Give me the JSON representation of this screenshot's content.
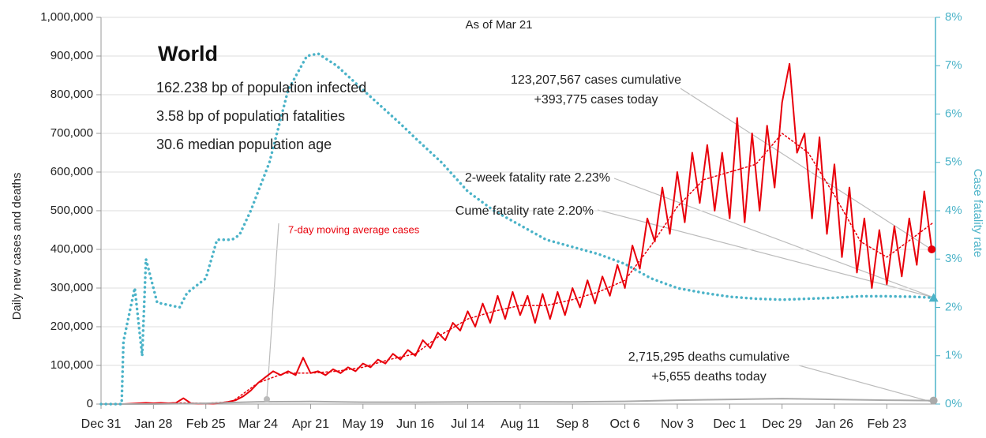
{
  "chart_data": {
    "type": "line",
    "ylabel": "Daily new cases and deaths",
    "y2label": "Case fatality rate",
    "ylim": [
      0,
      1000000
    ],
    "yticks": [
      0,
      {
        "value": 100000,
        "label": "100,000"
      },
      {
        "value": 200000,
        "label": "200,000"
      },
      {
        "value": 300000,
        "label": "300,000"
      },
      {
        "value": 400000,
        "label": "400,000"
      },
      {
        "value": 500000,
        "label": "500,000"
      },
      {
        "value": 600000,
        "label": "600,000"
      },
      {
        "value": 700000,
        "label": "700,000"
      },
      {
        "value": 800000,
        "label": "800,000"
      },
      {
        "value": 900000,
        "label": "900,000"
      },
      {
        "value": 1000000,
        "label": "1,000,000"
      }
    ],
    "y2lim": [
      0,
      8
    ],
    "y2ticks": [
      {
        "value": 0,
        "label": "0%"
      },
      {
        "value": 1,
        "label": "1%"
      },
      {
        "value": 2,
        "label": "2%"
      },
      {
        "value": 3,
        "label": "3%"
      },
      {
        "value": 4,
        "label": "4%"
      },
      {
        "value": 5,
        "label": "5%"
      },
      {
        "value": 6,
        "label": "6%"
      },
      {
        "value": 7,
        "label": "7%"
      },
      {
        "value": 8,
        "label": "8%"
      }
    ],
    "xlim": [
      0,
      446
    ],
    "xticks": [
      {
        "value": 0,
        "label": "Dec 31"
      },
      {
        "value": 28,
        "label": "Jan 28"
      },
      {
        "value": 56,
        "label": "Feb 25"
      },
      {
        "value": 84,
        "label": "Mar 24"
      },
      {
        "value": 112,
        "label": "Apr 21"
      },
      {
        "value": 140,
        "label": "May 19"
      },
      {
        "value": 168,
        "label": "Jun 16"
      },
      {
        "value": 196,
        "label": "Jul 14"
      },
      {
        "value": 224,
        "label": "Aug 11"
      },
      {
        "value": 252,
        "label": "Sep 8"
      },
      {
        "value": 280,
        "label": "Oct 6"
      },
      {
        "value": 308,
        "label": "Nov 3"
      },
      {
        "value": 336,
        "label": "Dec 1"
      },
      {
        "value": 364,
        "label": "Dec 29"
      },
      {
        "value": 392,
        "label": "Jan 26"
      },
      {
        "value": 420,
        "label": "Feb 23"
      }
    ],
    "grid": true,
    "annotations": [
      "As of Mar 21",
      "World",
      "162.238 bp of population infected",
      "3.58 bp of population fatalities",
      "30.6 median population age",
      "123,207,567 cases cumulative",
      "+393,775 cases today",
      "2-week fatality rate 2.23%",
      "Cume fatality rate 2.20%",
      "7-day moving average cases",
      "2,715,295 deaths cumulative",
      "+5,655 deaths today"
    ],
    "series": [
      {
        "color": "#e8000b",
        "style": "solid",
        "x": [
          0,
          4,
          8,
          12,
          16,
          20,
          24,
          28,
          32,
          36,
          40,
          44,
          48,
          52,
          56,
          60,
          64,
          68,
          72,
          76,
          80,
          84,
          88,
          92,
          96,
          100,
          104,
          108,
          112,
          116,
          120,
          124,
          128,
          132,
          136,
          140,
          144,
          148,
          152,
          156,
          160,
          164,
          168,
          172,
          176,
          180,
          184,
          188,
          192,
          196,
          200,
          204,
          208,
          212,
          216,
          220,
          224,
          228,
          232,
          236,
          240,
          244,
          248,
          252,
          256,
          260,
          264,
          268,
          272,
          276,
          280,
          284,
          288,
          292,
          296,
          300,
          304,
          308,
          312,
          316,
          320,
          324,
          328,
          332,
          336,
          340,
          344,
          348,
          352,
          356,
          360,
          364,
          368,
          372,
          376,
          380,
          384,
          388,
          392,
          396,
          400,
          404,
          408,
          412,
          416,
          420,
          424,
          428,
          432,
          436,
          440,
          444
        ],
        "values": [
          0,
          0,
          0,
          0,
          1000,
          2000,
          3000,
          2000,
          3000,
          2000,
          3000,
          15000,
          2000,
          1000,
          2000,
          1000,
          3000,
          6000,
          10000,
          20000,
          35000,
          55000,
          70000,
          85000,
          75000,
          85000,
          75000,
          120000,
          80000,
          85000,
          75000,
          90000,
          80000,
          95000,
          85000,
          105000,
          95000,
          115000,
          105000,
          130000,
          115000,
          140000,
          125000,
          165000,
          145000,
          185000,
          165000,
          210000,
          190000,
          240000,
          200000,
          260000,
          210000,
          280000,
          220000,
          290000,
          230000,
          280000,
          210000,
          285000,
          220000,
          290000,
          230000,
          300000,
          250000,
          320000,
          260000,
          330000,
          280000,
          360000,
          300000,
          410000,
          350000,
          480000,
          420000,
          560000,
          440000,
          600000,
          470000,
          650000,
          520000,
          670000,
          500000,
          650000,
          480000,
          740000,
          470000,
          700000,
          500000,
          720000,
          560000,
          780000,
          880000,
          650000,
          700000,
          480000,
          690000,
          440000,
          620000,
          380000,
          560000,
          340000,
          480000,
          300000,
          450000,
          310000,
          460000,
          330000,
          480000,
          360000,
          550000,
          400000
        ]
      },
      {
        "color": "#e8000b",
        "style": "dotted",
        "x": [
          0,
          14,
          28,
          42,
          56,
          70,
          84,
          98,
          112,
          126,
          140,
          154,
          168,
          182,
          196,
          210,
          224,
          238,
          252,
          266,
          280,
          294,
          308,
          322,
          336,
          350,
          364,
          378,
          392,
          406,
          420,
          434,
          445
        ],
        "values": [
          0,
          500,
          2000,
          3000,
          2000,
          6000,
          55000,
          80000,
          80000,
          85000,
          95000,
          115000,
          130000,
          180000,
          220000,
          240000,
          255000,
          255000,
          270000,
          290000,
          320000,
          410000,
          510000,
          580000,
          600000,
          620000,
          700000,
          650000,
          540000,
          420000,
          380000,
          430000,
          470000
        ]
      },
      {
        "color": "#aaaaaa",
        "style": "solid",
        "x": [
          0,
          28,
          56,
          84,
          112,
          140,
          168,
          196,
          224,
          252,
          280,
          308,
          336,
          364,
          392,
          420,
          445
        ],
        "values": [
          0,
          100,
          2000,
          6000,
          6500,
          5000,
          5000,
          5500,
          6000,
          5500,
          7000,
          10000,
          12000,
          14000,
          12000,
          10000,
          9000
        ]
      },
      {
        "color": "#4bb3c8",
        "style": "dotted",
        "axis": "y2",
        "x": [
          0,
          11,
          12,
          18,
          22,
          24,
          30,
          42,
          46,
          56,
          62,
          70,
          74,
          80,
          90,
          100,
          110,
          116,
          126,
          140,
          160,
          168,
          182,
          196,
          210,
          224,
          238,
          252,
          266,
          280,
          294,
          308,
          322,
          336,
          350,
          364,
          378,
          392,
          406,
          420,
          434,
          445
        ],
        "values": [
          0,
          0,
          1.3,
          2.4,
          1,
          3,
          2.1,
          2,
          2.3,
          2.6,
          3.4,
          3.4,
          3.5,
          4,
          5,
          6.5,
          7.2,
          7.25,
          7,
          6.5,
          5.8,
          5.5,
          5,
          4.4,
          4,
          3.7,
          3.4,
          3.25,
          3.1,
          2.9,
          2.6,
          2.4,
          2.3,
          2.22,
          2.18,
          2.16,
          2.18,
          2.2,
          2.23,
          2.23,
          2.22,
          2.2
        ]
      }
    ]
  }
}
